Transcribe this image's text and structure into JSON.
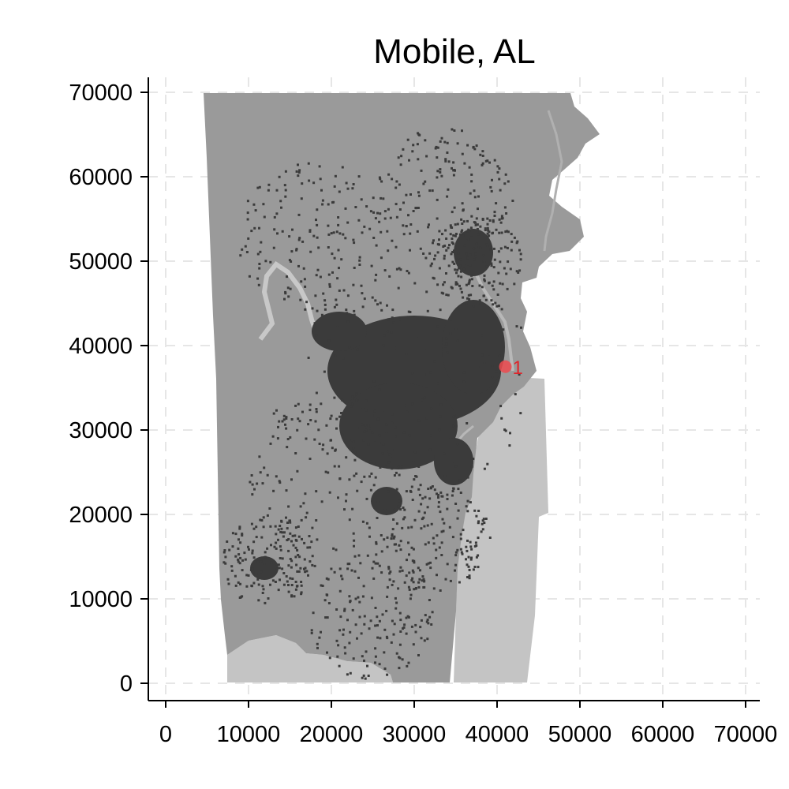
{
  "chart_data": {
    "type": "map",
    "title": "Mobile, AL",
    "xlabel": "",
    "ylabel": "",
    "xlim": [
      -1000,
      72000
    ],
    "ylim": [
      -2000,
      72000
    ],
    "x_ticks": [
      0,
      10000,
      20000,
      30000,
      40000,
      50000,
      60000,
      70000
    ],
    "y_ticks": [
      0,
      10000,
      20000,
      30000,
      40000,
      50000,
      60000,
      70000
    ],
    "x_tick_labels": [
      "0",
      "10000",
      "20000",
      "30000",
      "40000",
      "50000",
      "60000",
      "70000"
    ],
    "y_tick_labels": [
      "0",
      "10000",
      "20000",
      "30000",
      "40000",
      "50000",
      "60000",
      "70000"
    ],
    "grid": true,
    "colors": {
      "land": "#9a9a9a",
      "water": "#c4c4c4",
      "development": "#3b3b3b",
      "marker": "#ee4a4f",
      "grid": "#e6e6e6"
    },
    "markers": [
      {
        "label": "1",
        "x": 41000,
        "y": 37500
      }
    ]
  }
}
